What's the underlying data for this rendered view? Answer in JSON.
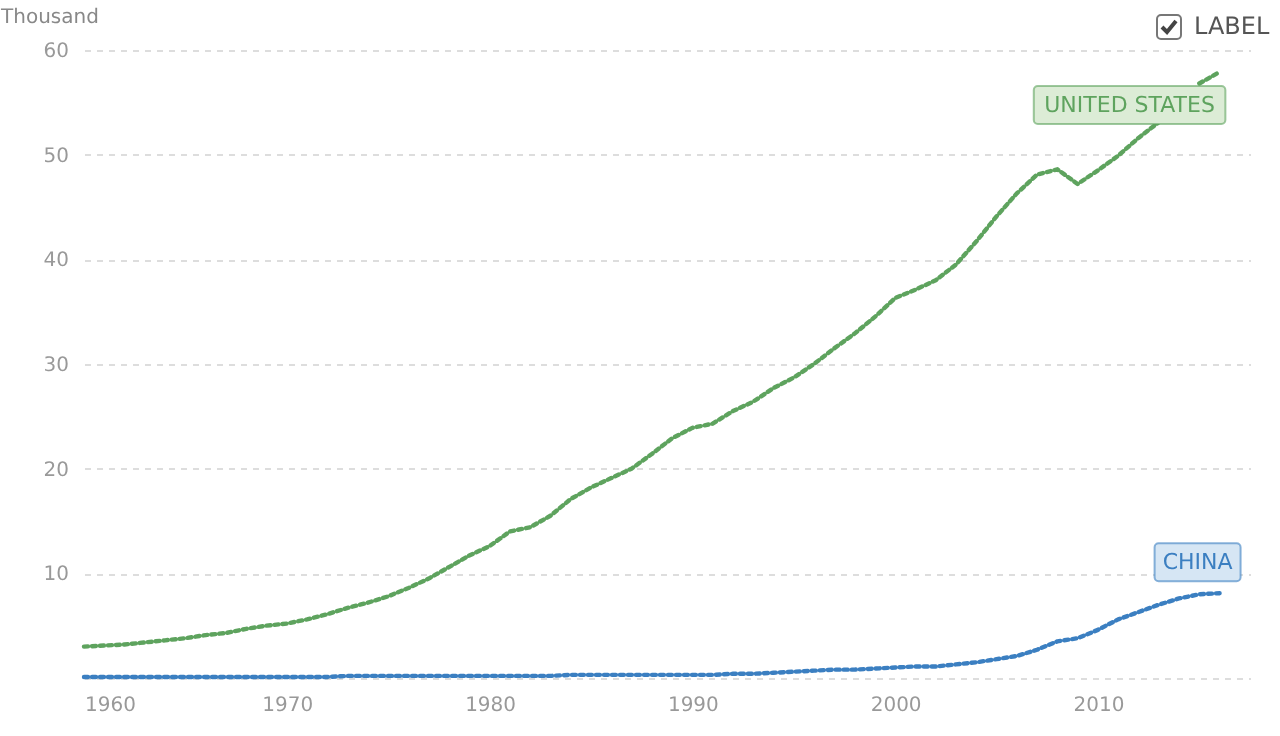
{
  "chart_data": {
    "type": "line",
    "ylabel": "Thousand",
    "annotations": [
      "LABEL"
    ],
    "x": [
      1960,
      1961,
      1962,
      1963,
      1964,
      1965,
      1966,
      1967,
      1968,
      1969,
      1970,
      1971,
      1972,
      1973,
      1974,
      1975,
      1976,
      1977,
      1978,
      1979,
      1980,
      1981,
      1982,
      1983,
      1984,
      1985,
      1986,
      1987,
      1988,
      1989,
      1990,
      1991,
      1992,
      1993,
      1994,
      1995,
      1996,
      1997,
      1998,
      1999,
      2000,
      2001,
      2002,
      2003,
      2004,
      2005,
      2006,
      2007,
      2008,
      2009,
      2010,
      2011,
      2012,
      2013,
      2014,
      2015,
      2016
    ],
    "series": [
      {
        "name": "UNITED STATES",
        "color": "#5ea35e",
        "values": [
          3.0,
          3.1,
          3.2,
          3.4,
          3.6,
          3.8,
          4.1,
          4.3,
          4.7,
          5.0,
          5.2,
          5.6,
          6.1,
          6.7,
          7.2,
          7.8,
          8.6,
          9.5,
          10.6,
          11.7,
          12.6,
          14.0,
          14.4,
          15.5,
          17.1,
          18.2,
          19.1,
          20.0,
          21.4,
          22.9,
          23.9,
          24.3,
          25.5,
          26.4,
          27.7,
          28.7,
          30.0,
          31.5,
          32.9,
          34.5,
          36.3,
          37.1,
          38.0,
          39.5,
          41.7,
          44.1,
          46.3,
          48.1,
          48.6,
          47.2,
          48.5,
          49.9,
          51.6,
          53.1,
          null,
          56.8,
          57.9
        ]
      },
      {
        "name": "CHINA",
        "color": "#3b7fc1",
        "values": [
          0.1,
          0.1,
          0.1,
          0.1,
          0.1,
          0.1,
          0.1,
          0.1,
          0.1,
          0.1,
          0.1,
          0.1,
          0.1,
          0.2,
          0.2,
          0.2,
          0.2,
          0.2,
          0.2,
          0.2,
          0.2,
          0.2,
          0.2,
          0.2,
          0.3,
          0.3,
          0.3,
          0.3,
          0.3,
          0.3,
          0.3,
          0.3,
          0.4,
          0.4,
          0.5,
          0.6,
          0.7,
          0.8,
          0.8,
          0.9,
          1.0,
          1.1,
          1.1,
          1.3,
          1.5,
          1.8,
          2.1,
          2.7,
          3.5,
          3.8,
          4.6,
          5.6,
          6.3,
          7.0,
          7.6,
          8.0,
          8.1
        ]
      }
    ],
    "xlim": [
      1960,
      2017.5
    ],
    "xticks": [
      1960,
      1970,
      1980,
      1990,
      2000,
      2010
    ],
    "ylim": [
      0,
      60
    ],
    "yticks": [
      {
        "value": 0,
        "label": null
      },
      10,
      20,
      30,
      40,
      50,
      60
    ],
    "grid": "y",
    "legend": false,
    "line_style": "dotted",
    "marker": "none"
  }
}
